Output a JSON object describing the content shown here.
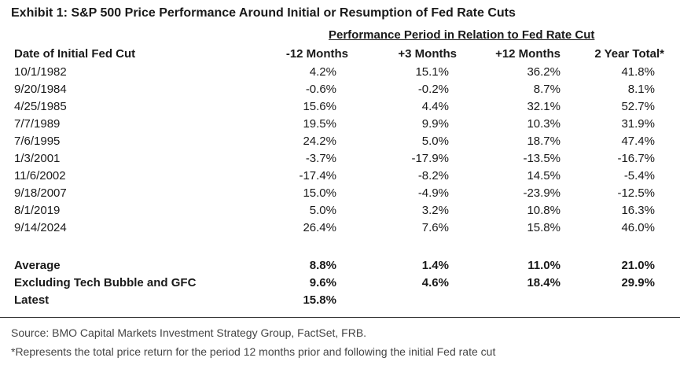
{
  "title": "Exhibit 1: S&P 500 Price Performance Around Initial or Resumption of Fed Rate Cuts",
  "subhead": "Performance Period in Relation to Fed Rate Cut",
  "headers": [
    "Date of Initial Fed Cut",
    "-12 Months",
    "+3 Months",
    "+12 Months",
    "2 Year Total*"
  ],
  "rows": [
    [
      "10/1/1982",
      "4.2%",
      "15.1%",
      "36.2%",
      "41.8%"
    ],
    [
      "9/20/1984",
      "-0.6%",
      "-0.2%",
      "8.7%",
      "8.1%"
    ],
    [
      "4/25/1985",
      "15.6%",
      "4.4%",
      "32.1%",
      "52.7%"
    ],
    [
      "7/7/1989",
      "19.5%",
      "9.9%",
      "10.3%",
      "31.9%"
    ],
    [
      "7/6/1995",
      "24.2%",
      "5.0%",
      "18.7%",
      "47.4%"
    ],
    [
      "1/3/2001",
      "-3.7%",
      "-17.9%",
      "-13.5%",
      "-16.7%"
    ],
    [
      "11/6/2002",
      "-17.4%",
      "-8.2%",
      "14.5%",
      "-5.4%"
    ],
    [
      "9/18/2007",
      "15.0%",
      "-4.9%",
      "-23.9%",
      "-12.5%"
    ],
    [
      "8/1/2019",
      "5.0%",
      "3.2%",
      "10.8%",
      "16.3%"
    ],
    [
      "9/14/2024",
      "26.4%",
      "7.6%",
      "15.8%",
      "46.0%"
    ]
  ],
  "summary": [
    [
      "Average",
      "8.8%",
      "1.4%",
      "11.0%",
      "21.0%"
    ],
    [
      "Excluding Tech Bubble and GFC",
      "9.6%",
      "4.6%",
      "18.4%",
      "29.9%"
    ],
    [
      "Latest",
      "15.8%",
      "",
      "",
      ""
    ]
  ],
  "source": "Source: BMO Capital Markets Investment Strategy Group, FactSet, FRB.",
  "note": "*Represents the total price return for the period 12 months prior and following the initial Fed rate cut"
}
